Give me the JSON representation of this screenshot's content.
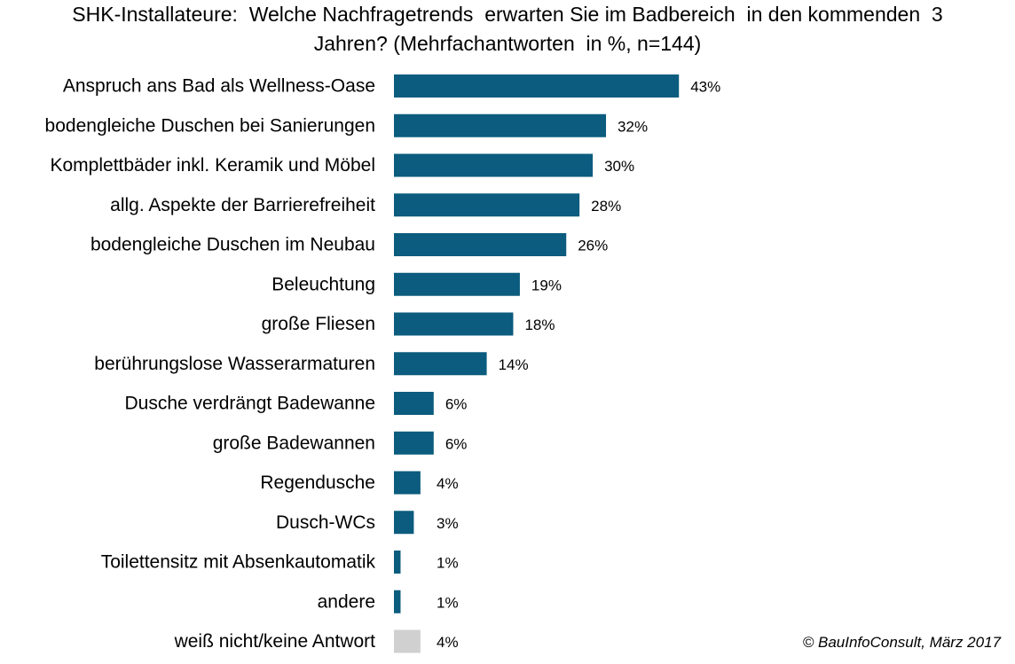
{
  "chart_data": {
    "type": "bar",
    "orientation": "horizontal",
    "title_lines": [
      "SHK-Installateure:  Welche Nachfragetrends  erwarten Sie im Badbereich  in den kommenden  3",
      "Jahren? (Mehrfachantworten  in %, n=144)"
    ],
    "categories": [
      "Anspruch ans Bad als Wellness-Oase",
      "bodengleiche Duschen bei Sanierungen",
      "Komplettbäder inkl. Keramik und Möbel",
      "allg. Aspekte der Barrierefreiheit",
      "bodengleiche Duschen im Neubau",
      "Beleuchtung",
      "große Fliesen",
      "berührungslose Wasserarmaturen",
      "Dusche verdrängt Badewanne",
      "große Badewannen",
      "Regendusche",
      "Dusch-WCs",
      "Toilettensitz mit Absenkautomatik",
      "andere",
      "weiß nicht/keine Antwort"
    ],
    "values": [
      43,
      32,
      30,
      28,
      26,
      19,
      18,
      14,
      6,
      6,
      4,
      3,
      1,
      1,
      4
    ],
    "value_labels": [
      "43%",
      "32%",
      "30%",
      "28%",
      "26%",
      "19%",
      "18%",
      "14%",
      "6%",
      "6%",
      "4%",
      "3%",
      "1%",
      "1%",
      "4%"
    ],
    "colors": [
      "#0b5c7e",
      "#0b5c7e",
      "#0b5c7e",
      "#0b5c7e",
      "#0b5c7e",
      "#0b5c7e",
      "#0b5c7e",
      "#0b5c7e",
      "#0b5c7e",
      "#0b5c7e",
      "#0b5c7e",
      "#0b5c7e",
      "#0b5c7e",
      "#0b5c7e",
      "#d0d0d0"
    ],
    "xlim": [
      0,
      100
    ],
    "grid": false,
    "legend": false,
    "source": "© BauInfoConsult, März 2017"
  }
}
